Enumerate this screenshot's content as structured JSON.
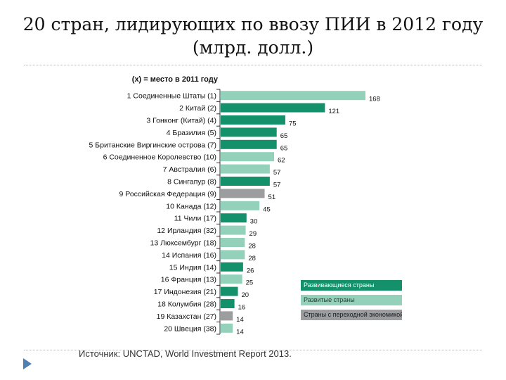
{
  "slide": {
    "title": "20 стран, лидирующих по ввозу ПИИ в 2012 году (млрд. долл.)",
    "source_label": "Источник:",
    "source_text": "UNCTAD, World Investment Report 2013."
  },
  "colors": {
    "developing": "#14906a",
    "developed": "#93d1bb",
    "transition": "#9c9d9f",
    "axis": "#333333"
  },
  "chart_data": {
    "type": "bar",
    "orientation": "horizontal",
    "subtitle": "(x) = место в 2011 году",
    "categories": [
      "1 Соединенные Штаты (1)",
      "2 Китай (2)",
      "3 Гонконг (Китай) (4)",
      "4 Бразилия (5)",
      "5 Британские Виргинские острова (7)",
      "6 Соединенное Королевство (10)",
      "7 Австралия (6)",
      "8 Сингапур (8)",
      "9 Российская Федерация (9)",
      "10 Канада (12)",
      "11 Чили (17)",
      "12 Ирландия (32)",
      "13 Люксембург (18)",
      "14 Испания (16)",
      "15 Индия (14)",
      "16 Франция (13)",
      "17 Индонезия (21)",
      "18 Колумбия (28)",
      "19 Казахстан (27)",
      "20 Швеция (38)"
    ],
    "values": [
      168,
      121,
      75,
      65,
      65,
      62,
      57,
      57,
      51,
      45,
      30,
      29,
      28,
      28,
      26,
      25,
      20,
      16,
      14,
      14
    ],
    "value_labels": [
      "168",
      "121",
      "75",
      "65",
      "65",
      "62",
      "57",
      "57",
      "51",
      "45",
      "30",
      "29",
      "28",
      "28",
      "26",
      "25",
      "20",
      "16",
      "14",
      "14"
    ],
    "groups": [
      "developed",
      "developing",
      "developing",
      "developing",
      "developing",
      "developed",
      "developed",
      "developing",
      "transition",
      "developed",
      "developing",
      "developed",
      "developed",
      "developed",
      "developing",
      "developed",
      "developing",
      "developing",
      "transition",
      "developed"
    ],
    "xlim": [
      0,
      170
    ],
    "grid": false,
    "legend": {
      "placement": "bottom-right",
      "items": [
        {
          "key": "developing",
          "label": "Развивающиеся страны"
        },
        {
          "key": "developed",
          "label": "Развитые страны"
        },
        {
          "key": "transition",
          "label": "Страны с переходной экономикой"
        }
      ]
    }
  }
}
